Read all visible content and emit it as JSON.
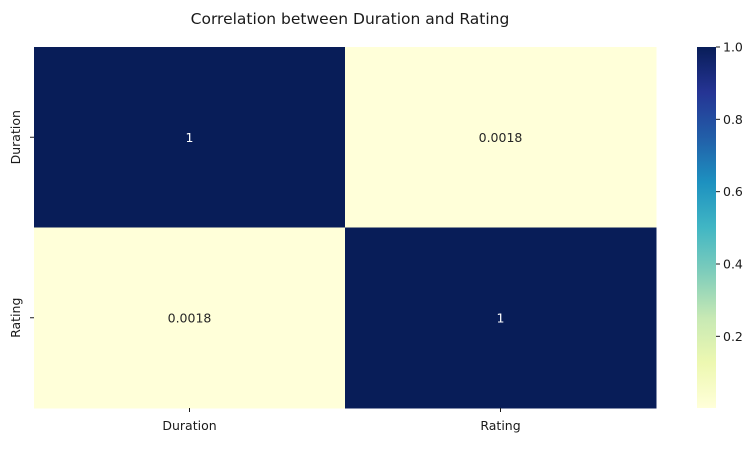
{
  "chart_data": {
    "type": "heatmap",
    "title": "Correlation between Duration and Rating",
    "row_labels": [
      "Duration",
      "Rating"
    ],
    "column_labels": [
      "Duration",
      "Rating"
    ],
    "values": [
      [
        1,
        0.0018
      ],
      [
        0.0018,
        1
      ]
    ],
    "cell_text": [
      [
        "1",
        "0.0018"
      ],
      [
        "0.0018",
        "1"
      ]
    ],
    "colormap": "YlGnBu",
    "colorbar": {
      "range": [
        0.0018,
        1.0
      ],
      "ticks": [
        0.2,
        0.4,
        0.6,
        0.8,
        1.0
      ],
      "tick_labels": [
        "0.2",
        "0.4",
        "0.6",
        "0.8",
        "1.0"
      ]
    }
  }
}
